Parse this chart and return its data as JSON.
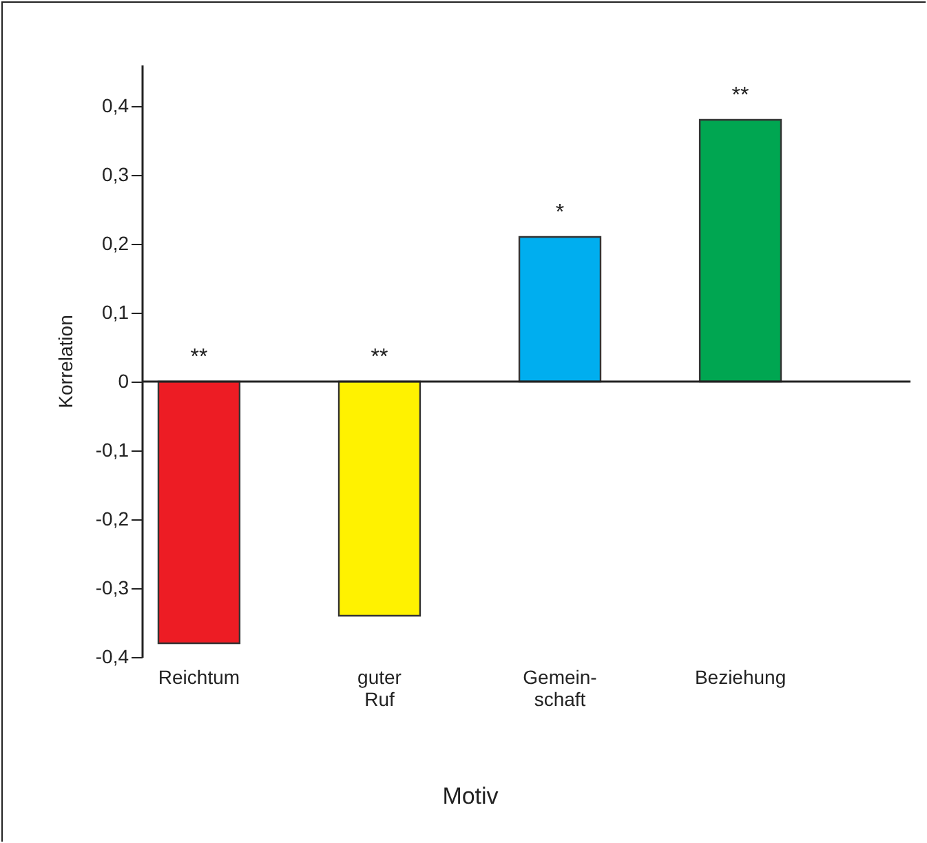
{
  "chart_data": {
    "type": "bar",
    "xlabel": "Motiv",
    "ylabel": "Korrelation",
    "categories": [
      "Reichtum",
      "guter\nRuf",
      "Gemein-\nschaft",
      "Beziehung"
    ],
    "values": [
      -0.38,
      -0.34,
      0.21,
      0.38
    ],
    "colors": [
      "#ed1c24",
      "#fff200",
      "#00aeef",
      "#00a651"
    ],
    "ylim": [
      -0.4,
      0.46
    ],
    "yticks": [
      {
        "value": -0.4,
        "label": "-0,4"
      },
      {
        "value": -0.3,
        "label": "-0,3"
      },
      {
        "value": -0.2,
        "label": "-0,2"
      },
      {
        "value": -0.1,
        "label": "-0,1"
      },
      0,
      {
        "value": 0.1,
        "label": "0,1"
      },
      {
        "value": 0.2,
        "label": "0,2"
      },
      {
        "value": 0.3,
        "label": "0,3"
      },
      {
        "value": 0.4,
        "label": "0,4"
      }
    ],
    "annotations": [
      {
        "text": "**",
        "x": "Reichtum",
        "y": 0
      },
      {
        "text": "**",
        "x": "guter\nRuf",
        "y": 0
      },
      {
        "text": "*",
        "x": "Gemein-\nschaft",
        "y": 0.21
      },
      {
        "text": "**",
        "x": "Beziehung",
        "y": 0.38
      }
    ],
    "legend": false
  }
}
